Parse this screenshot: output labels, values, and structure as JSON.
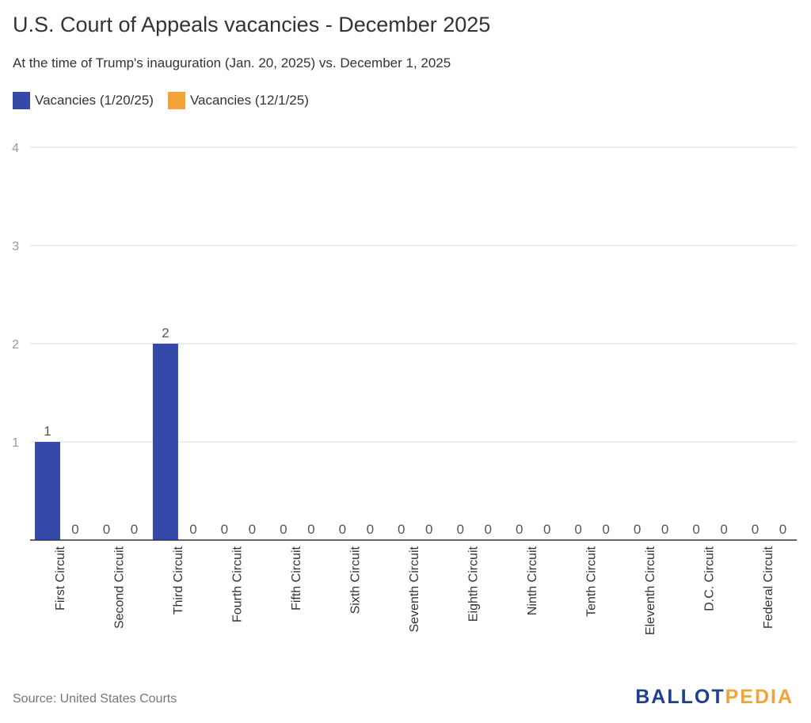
{
  "title": "U.S. Court of Appeals vacancies - December 2025",
  "subtitle": "At the time of Trump's inauguration (Jan. 20, 2025) vs. December 1, 2025",
  "source": "Source: United States Courts",
  "logo": {
    "part1": "BALLOT",
    "part2": "PEDIA",
    "color1": "#1f3f8f",
    "color2": "#f2a33a"
  },
  "chart_data": {
    "type": "bar",
    "categories": [
      "First Circuit",
      "Second Circuit",
      "Third Circuit",
      "Fourth Circuit",
      "Fifth Circuit",
      "Sixth Circuit",
      "Seventh Circuit",
      "Eighth Circuit",
      "Ninth Circuit",
      "Tenth Circuit",
      "Eleventh Circuit",
      "D.C. Circuit",
      "Federal Circuit"
    ],
    "series": [
      {
        "name": "Vacancies (1/20/25)",
        "color": "#3449a8",
        "values": [
          1,
          0,
          2,
          0,
          0,
          0,
          0,
          0,
          0,
          0,
          0,
          0,
          0
        ]
      },
      {
        "name": "Vacancies (12/1/25)",
        "color": "#f2a33a",
        "values": [
          0,
          0,
          0,
          0,
          0,
          0,
          0,
          0,
          0,
          0,
          0,
          0,
          0
        ]
      }
    ],
    "yticks": [
      1,
      2,
      3,
      4
    ],
    "ylim": [
      0,
      4
    ],
    "grid": true,
    "legend": "top-left"
  }
}
